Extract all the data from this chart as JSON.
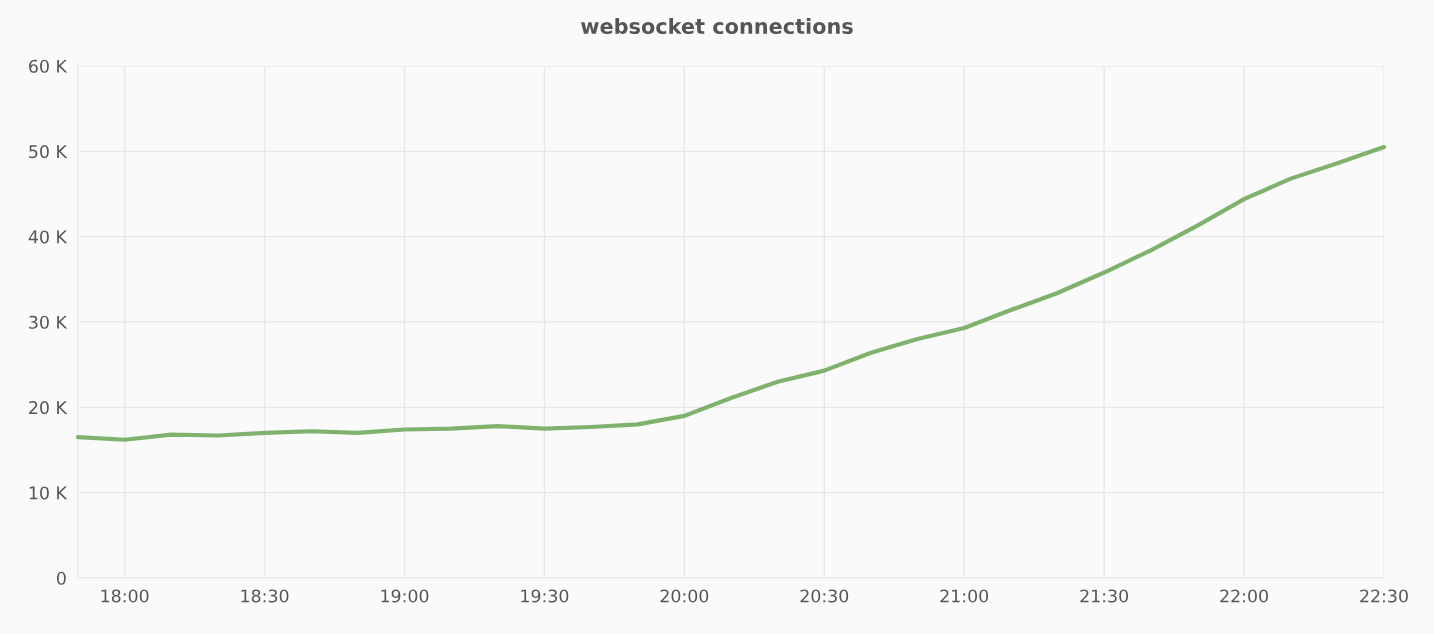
{
  "chart_data": {
    "type": "line",
    "title": "websocket connections",
    "x": [
      17.8333,
      18,
      18.1667,
      18.3333,
      18.5,
      18.6667,
      18.8333,
      19,
      19.1667,
      19.3333,
      19.5,
      19.6667,
      19.8333,
      20,
      20.1667,
      20.3333,
      20.5,
      20.6667,
      20.8333,
      21,
      21.1667,
      21.3333,
      21.5,
      21.6667,
      21.8333,
      22,
      22.1667,
      22.3333,
      22.5
    ],
    "series": [
      {
        "color": "#7eb26d",
        "values": [
          16500,
          16200,
          16800,
          16700,
          17000,
          17200,
          17000,
          17400,
          17500,
          17800,
          17500,
          17700,
          18000,
          19000,
          21100,
          23000,
          24300,
          26400,
          28000,
          29300,
          31400,
          33400,
          35800,
          38400,
          41300,
          44400,
          46800,
          48600,
          50500
        ]
      }
    ],
    "xlim": [
      17.8333,
      22.5
    ],
    "xticks": [
      {
        "value": 18,
        "label": "18:00"
      },
      {
        "value": 18.5,
        "label": "18:30"
      },
      {
        "value": 19,
        "label": "19:00"
      },
      {
        "value": 19.5,
        "label": "19:30"
      },
      {
        "value": 20,
        "label": "20:00"
      },
      {
        "value": 20.5,
        "label": "20:30"
      },
      {
        "value": 21,
        "label": "21:00"
      },
      {
        "value": 21.5,
        "label": "21:30"
      },
      {
        "value": 22,
        "label": "22:00"
      },
      {
        "value": 22.5,
        "label": "22:30"
      }
    ],
    "ylim": [
      0,
      60000
    ],
    "yticks": [
      0,
      {
        "value": 10000,
        "label": "10 K"
      },
      {
        "value": 20000,
        "label": "20 K"
      },
      {
        "value": 30000,
        "label": "30 K"
      },
      {
        "value": 40000,
        "label": "40 K"
      },
      {
        "value": 50000,
        "label": "50 K"
      },
      {
        "value": 60000,
        "label": "60 K"
      }
    ],
    "grid": true,
    "line_style": "solid"
  }
}
